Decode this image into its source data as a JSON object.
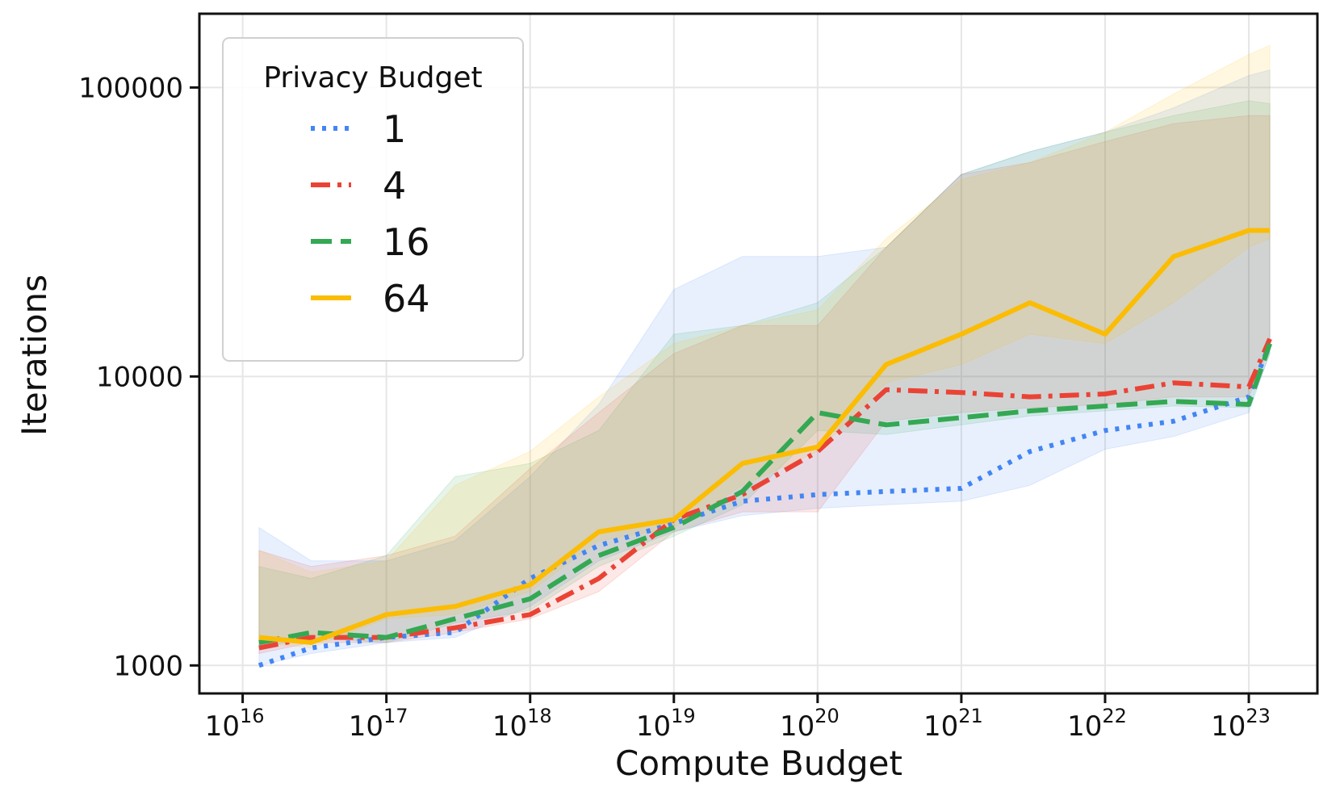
{
  "chart_data": {
    "type": "line",
    "title": "",
    "xlabel": "Compute Budget",
    "ylabel": "Iterations",
    "x_scale": "log",
    "y_scale": "log",
    "xlim": [
      5000000000000000.0,
      3e+23
    ],
    "ylim": [
      800,
      180000
    ],
    "x_ticks": [
      {
        "value": 1e+16,
        "base": "10",
        "exp": "16"
      },
      {
        "value": 1e+17,
        "base": "10",
        "exp": "17"
      },
      {
        "value": 1e+18,
        "base": "10",
        "exp": "18"
      },
      {
        "value": 1e+19,
        "base": "10",
        "exp": "19"
      },
      {
        "value": 1e+20,
        "base": "10",
        "exp": "20"
      },
      {
        "value": 1e+21,
        "base": "10",
        "exp": "21"
      },
      {
        "value": 1e+22,
        "base": "10",
        "exp": "22"
      },
      {
        "value": 1e+23,
        "base": "10",
        "exp": "23"
      }
    ],
    "y_ticks": [
      {
        "value": 1000,
        "label": "1000"
      },
      {
        "value": 10000,
        "label": "10000"
      },
      {
        "value": 100000,
        "label": "100000"
      }
    ],
    "grid": true,
    "legend": {
      "title": "Privacy Budget",
      "position": "top-left"
    },
    "x": [
      1.3e+16,
      3e+16,
      1e+17,
      3e+17,
      1e+18,
      3e+18,
      1e+19,
      3e+19,
      1e+20,
      3e+20,
      1e+21,
      3e+21,
      1e+22,
      3e+22,
      1e+23,
      1.4e+23
    ],
    "series": [
      {
        "name": "1",
        "color": "#4285f4",
        "dash": "dotted",
        "values": [
          1000,
          1150,
          1250,
          1300,
          2000,
          2600,
          3100,
          3700,
          3900,
          4000,
          4100,
          5500,
          6500,
          7000,
          8500,
          13000
        ],
        "band_low": [
          1000,
          1100,
          1200,
          1250,
          1600,
          2300,
          2900,
          3300,
          3500,
          3600,
          3700,
          4200,
          5600,
          6200,
          7500,
          12000
        ],
        "band_high": [
          3000,
          2300,
          2300,
          2700,
          4500,
          8000,
          20000,
          26000,
          26000,
          28000,
          50000,
          60000,
          70000,
          85000,
          110000,
          115000
        ]
      },
      {
        "name": "4",
        "color": "#ea4335",
        "dash": "dashdot",
        "values": [
          1150,
          1250,
          1250,
          1350,
          1500,
          2000,
          3200,
          3900,
          5500,
          9000,
          8800,
          8500,
          8700,
          9500,
          9200,
          13500
        ],
        "band_low": [
          1100,
          1200,
          1200,
          1300,
          1450,
          1800,
          2900,
          3400,
          3400,
          7000,
          7500,
          7800,
          8000,
          8500,
          8500,
          12500
        ],
        "band_high": [
          2500,
          2200,
          2400,
          2800,
          4800,
          7500,
          12000,
          15000,
          15000,
          28000,
          50000,
          55000,
          65000,
          75000,
          80000,
          80000
        ]
      },
      {
        "name": "16",
        "color": "#34a853",
        "dash": "dashed",
        "values": [
          1200,
          1300,
          1250,
          1450,
          1700,
          2400,
          3000,
          4000,
          7500,
          6800,
          7200,
          7600,
          7900,
          8200,
          8000,
          13000
        ],
        "band_low": [
          1150,
          1250,
          1200,
          1400,
          1550,
          2200,
          2800,
          3600,
          6500,
          6300,
          6800,
          7300,
          7600,
          7900,
          7800,
          12000
        ],
        "band_high": [
          2200,
          2000,
          2400,
          4500,
          5000,
          6500,
          14000,
          15000,
          18000,
          28000,
          50000,
          60000,
          70000,
          80000,
          90000,
          88000
        ]
      },
      {
        "name": "64",
        "color": "#fbbc04",
        "dash": "solid",
        "values": [
          1250,
          1200,
          1500,
          1600,
          1900,
          2900,
          3200,
          5000,
          5700,
          11000,
          14000,
          18000,
          14000,
          26000,
          32000,
          32000
        ],
        "band_low": [
          1200,
          1150,
          1450,
          1500,
          1800,
          2700,
          3000,
          4200,
          5500,
          9500,
          11000,
          14000,
          13000,
          18000,
          28000,
          30000
        ],
        "band_high": [
          2500,
          2100,
          2300,
          4200,
          5500,
          8500,
          13000,
          15000,
          17000,
          30000,
          48000,
          55000,
          70000,
          95000,
          130000,
          140000
        ]
      }
    ]
  }
}
